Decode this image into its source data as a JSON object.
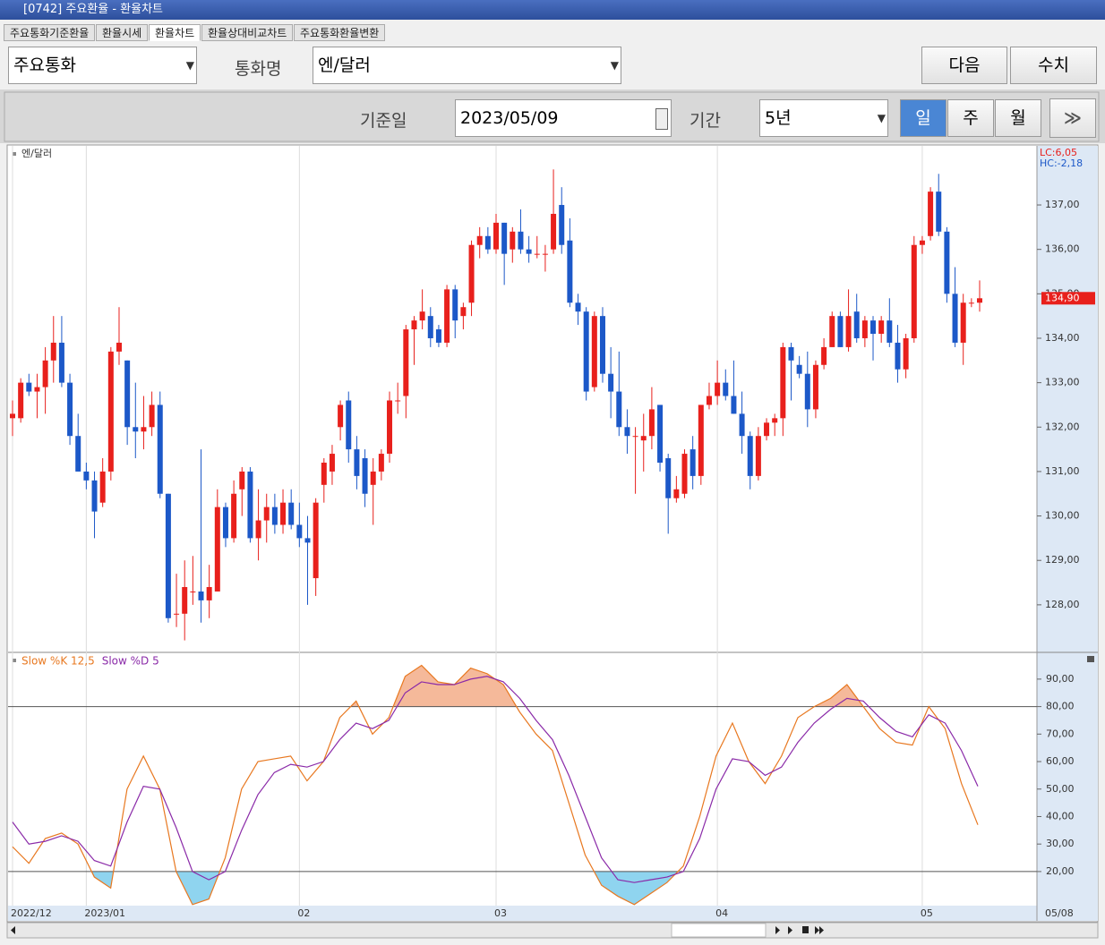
{
  "window": {
    "number": "1",
    "title": "[0742] 주요환율 - 환율차트"
  },
  "tabs": [
    "주요통화기준환율",
    "환율시세",
    "환율차트",
    "환율상대비교차트",
    "주요통화환율변환"
  ],
  "active_tab": 2,
  "controls": {
    "group": "주요통화",
    "currency_label": "통화명",
    "currency": "엔/달러",
    "next": "다음",
    "values": "수치",
    "date_label": "기준일",
    "date": "2023/05/09",
    "period_label": "기간",
    "period": "5년",
    "intervals": [
      "일",
      "주",
      "월"
    ],
    "active_interval": 0
  },
  "chart_data": [
    {
      "type": "candlestick",
      "label": "엔/달러",
      "up_color": "#e8201c",
      "down_color": "#1c58c8",
      "ylim": [
        126.95,
        138.33
      ],
      "yticks": [
        {
          "value": 128,
          "label": "128,00"
        },
        {
          "value": 129,
          "label": "129,00"
        },
        {
          "value": 130,
          "label": "130,00"
        },
        {
          "value": 131,
          "label": "131,00"
        },
        {
          "value": 132,
          "label": "132,00"
        },
        {
          "value": 133,
          "label": "133,00"
        },
        {
          "value": 134,
          "label": "134,00"
        },
        {
          "value": 135,
          "label": "135,00"
        },
        {
          "value": 136,
          "label": "136,00"
        },
        {
          "value": 137,
          "label": "137,00"
        }
      ],
      "info": [
        {
          "text": "LC:6,05",
          "color": "#e8201c"
        },
        {
          "text": "HC:-2,18",
          "color": "#1c58c8"
        }
      ],
      "last_label": "134,90",
      "last_date": "05/08",
      "categories": [
        "2022/12",
        null,
        null,
        null,
        null,
        null,
        null,
        null,
        null,
        "2023/01",
        null,
        null,
        null,
        null,
        null,
        null,
        null,
        null,
        null,
        null,
        null,
        null,
        null,
        null,
        null,
        null,
        null,
        null,
        null,
        null,
        null,
        null,
        null,
        null,
        null,
        "02",
        null,
        null,
        null,
        null,
        null,
        null,
        null,
        null,
        null,
        null,
        null,
        null,
        null,
        null,
        null,
        null,
        null,
        null,
        null,
        null,
        null,
        null,
        null,
        "03",
        null,
        null,
        null,
        null,
        null,
        null,
        null,
        null,
        null,
        null,
        null,
        null,
        null,
        null,
        null,
        null,
        null,
        null,
        null,
        null,
        null,
        null,
        null,
        null,
        null,
        null,
        "04",
        null,
        null,
        null,
        null,
        null,
        null,
        null,
        null,
        null,
        null,
        null,
        null,
        null,
        null,
        null,
        null,
        null,
        null,
        null,
        null,
        null,
        null,
        null,
        null,
        "05",
        null,
        null,
        null,
        null,
        null,
        null,
        null
      ],
      "ohlc": [
        [
          132.2,
          132.6,
          131.8,
          132.3
        ],
        [
          132.2,
          133.1,
          132.1,
          133.0
        ],
        [
          133.0,
          133.2,
          132.7,
          132.8
        ],
        [
          132.8,
          133.2,
          132.2,
          132.9
        ],
        [
          132.9,
          133.8,
          132.3,
          133.5
        ],
        [
          133.5,
          134.5,
          133.0,
          133.9
        ],
        [
          133.9,
          134.5,
          132.9,
          133.0
        ],
        [
          133.0,
          133.2,
          131.6,
          131.8
        ],
        [
          131.8,
          132.3,
          131.0,
          131.0
        ],
        [
          131.0,
          131.2,
          130.6,
          130.8
        ],
        [
          130.8,
          131.0,
          129.5,
          130.1
        ],
        [
          130.3,
          131.3,
          130.2,
          131.0
        ],
        [
          131.0,
          133.8,
          130.8,
          133.7
        ],
        [
          133.7,
          134.7,
          133.4,
          133.9
        ],
        [
          133.5,
          133.5,
          131.6,
          132.0
        ],
        [
          132.0,
          133.0,
          131.3,
          131.9
        ],
        [
          131.9,
          132.7,
          131.5,
          132.0
        ],
        [
          132.0,
          132.8,
          131.8,
          132.5
        ],
        [
          132.5,
          132.8,
          130.4,
          130.5
        ],
        [
          130.5,
          130.5,
          127.6,
          127.7
        ],
        [
          127.8,
          128.7,
          127.5,
          127.8
        ],
        [
          127.8,
          129.0,
          127.2,
          128.4
        ],
        [
          128.3,
          129.1,
          128.0,
          128.3
        ],
        [
          128.3,
          131.5,
          127.6,
          128.1
        ],
        [
          128.1,
          128.9,
          127.7,
          128.4
        ],
        [
          128.3,
          130.6,
          128.3,
          130.2
        ],
        [
          130.2,
          130.3,
          129.3,
          129.5
        ],
        [
          129.5,
          130.8,
          129.4,
          130.5
        ],
        [
          130.6,
          131.1,
          130.0,
          131.0
        ],
        [
          131.0,
          131.1,
          129.4,
          129.5
        ],
        [
          129.5,
          130.6,
          129.0,
          129.9
        ],
        [
          129.9,
          130.5,
          129.4,
          130.2
        ],
        [
          130.2,
          130.5,
          129.6,
          129.8
        ],
        [
          129.8,
          130.6,
          129.6,
          130.3
        ],
        [
          130.3,
          130.6,
          129.7,
          129.8
        ],
        [
          129.8,
          130.3,
          129.3,
          129.5
        ],
        [
          129.5,
          130.0,
          128.0,
          129.4
        ],
        [
          128.6,
          130.4,
          128.2,
          130.3
        ],
        [
          130.7,
          131.3,
          130.3,
          131.2
        ],
        [
          131.0,
          131.6,
          130.7,
          131.4
        ],
        [
          132.0,
          132.6,
          131.7,
          132.5
        ],
        [
          132.6,
          132.8,
          131.2,
          131.5
        ],
        [
          131.5,
          131.8,
          130.6,
          130.9
        ],
        [
          131.3,
          131.5,
          130.2,
          130.5
        ],
        [
          130.7,
          131.3,
          129.8,
          131.0
        ],
        [
          131.0,
          131.5,
          130.8,
          131.4
        ],
        [
          131.4,
          132.8,
          131.2,
          132.6
        ],
        [
          132.6,
          133.0,
          132.3,
          132.6
        ],
        [
          132.7,
          134.3,
          132.2,
          134.2
        ],
        [
          134.2,
          134.5,
          133.4,
          134.4
        ],
        [
          134.4,
          135.1,
          134.2,
          134.6
        ],
        [
          134.5,
          134.7,
          133.8,
          134.0
        ],
        [
          134.2,
          134.3,
          133.8,
          133.9
        ],
        [
          133.9,
          135.2,
          133.8,
          135.1
        ],
        [
          135.1,
          135.2,
          134.0,
          134.4
        ],
        [
          134.5,
          134.8,
          134.2,
          134.7
        ],
        [
          134.8,
          136.2,
          134.5,
          136.1
        ],
        [
          136.1,
          136.5,
          135.8,
          136.3
        ],
        [
          136.3,
          136.5,
          135.9,
          136.0
        ],
        [
          136.0,
          136.8,
          135.9,
          136.6
        ],
        [
          136.6,
          136.6,
          135.2,
          135.9
        ],
        [
          136.0,
          136.5,
          135.7,
          136.4
        ],
        [
          136.4,
          136.9,
          135.9,
          136.0
        ],
        [
          136.0,
          136.3,
          135.7,
          135.9
        ],
        [
          135.9,
          136.3,
          135.8,
          135.9
        ],
        [
          135.9,
          136.1,
          135.5,
          135.9
        ],
        [
          136.0,
          137.8,
          135.9,
          136.8
        ],
        [
          137.0,
          137.4,
          135.9,
          136.1
        ],
        [
          136.2,
          136.7,
          134.7,
          134.8
        ],
        [
          134.8,
          135.0,
          134.3,
          134.6
        ],
        [
          134.6,
          134.7,
          132.6,
          132.8
        ],
        [
          132.9,
          134.6,
          132.8,
          134.5
        ],
        [
          134.5,
          134.7,
          133.0,
          133.2
        ],
        [
          133.2,
          133.8,
          132.2,
          132.8
        ],
        [
          132.8,
          133.7,
          131.8,
          132.0
        ],
        [
          132.0,
          132.4,
          131.4,
          131.8
        ],
        [
          131.8,
          132.0,
          130.5,
          131.8
        ],
        [
          131.7,
          132.3,
          131.0,
          131.8
        ],
        [
          131.8,
          132.9,
          131.5,
          132.4
        ],
        [
          132.5,
          132.5,
          131.0,
          131.2
        ],
        [
          131.3,
          131.4,
          129.6,
          130.4
        ],
        [
          130.4,
          130.9,
          130.3,
          130.6
        ],
        [
          130.5,
          131.5,
          130.4,
          131.4
        ],
        [
          131.5,
          131.8,
          130.6,
          130.9
        ],
        [
          130.9,
          132.5,
          130.7,
          132.5
        ],
        [
          132.5,
          133.0,
          132.4,
          132.7
        ],
        [
          132.7,
          133.5,
          132.5,
          133.0
        ],
        [
          133.0,
          133.3,
          132.6,
          132.7
        ],
        [
          132.7,
          133.5,
          132.3,
          132.3
        ],
        [
          132.3,
          132.8,
          131.4,
          131.8
        ],
        [
          131.8,
          131.9,
          130.6,
          130.9
        ],
        [
          130.9,
          132.0,
          130.8,
          131.8
        ],
        [
          131.8,
          132.2,
          131.7,
          132.1
        ],
        [
          132.1,
          132.3,
          131.8,
          132.2
        ],
        [
          132.2,
          133.9,
          131.8,
          133.8
        ],
        [
          133.8,
          133.9,
          132.6,
          133.5
        ],
        [
          133.4,
          133.6,
          133.1,
          133.2
        ],
        [
          133.2,
          133.7,
          132.0,
          132.4
        ],
        [
          132.4,
          133.5,
          132.2,
          133.4
        ],
        [
          133.4,
          134.0,
          133.3,
          133.8
        ],
        [
          133.8,
          134.6,
          133.8,
          134.5
        ],
        [
          134.5,
          134.6,
          133.8,
          133.8
        ],
        [
          133.8,
          135.1,
          133.7,
          134.5
        ],
        [
          134.6,
          135.0,
          133.9,
          134.0
        ],
        [
          134.0,
          134.5,
          133.8,
          134.4
        ],
        [
          134.4,
          134.5,
          133.5,
          134.1
        ],
        [
          134.1,
          134.5,
          133.9,
          134.4
        ],
        [
          134.4,
          134.9,
          133.8,
          133.9
        ],
        [
          133.9,
          134.3,
          133.0,
          133.3
        ],
        [
          133.3,
          134.1,
          133.1,
          134.0
        ],
        [
          134.0,
          136.3,
          133.9,
          136.1
        ],
        [
          136.1,
          136.3,
          135.9,
          136.2
        ],
        [
          136.3,
          137.4,
          136.2,
          137.3
        ],
        [
          137.3,
          137.7,
          136.3,
          136.4
        ],
        [
          136.4,
          136.5,
          134.8,
          135.0
        ],
        [
          135.0,
          135.6,
          133.8,
          133.9
        ],
        [
          133.9,
          135.0,
          133.4,
          134.8
        ],
        [
          134.8,
          134.9,
          134.7,
          134.8
        ],
        [
          134.8,
          135.3,
          134.6,
          134.9
        ]
      ]
    },
    {
      "type": "line",
      "ylim": [
        7.6,
        99.4
      ],
      "yticks": [
        {
          "value": 20,
          "label": "20,00"
        },
        {
          "value": 30,
          "label": "30,00"
        },
        {
          "value": 40,
          "label": "40,00"
        },
        {
          "value": 50,
          "label": "50,00"
        },
        {
          "value": 60,
          "label": "60,00"
        },
        {
          "value": 70,
          "label": "70,00"
        },
        {
          "value": 80,
          "label": "80,00"
        },
        {
          "value": 90,
          "label": "90,00"
        }
      ],
      "levels": [
        80,
        20
      ],
      "high_fill": "#f5b99a",
      "low_fill": "#8fd4ef",
      "series": [
        {
          "name": "Slow %K 12,5",
          "color": "#e87820",
          "values": [
            29,
            23,
            32,
            34,
            30,
            18,
            14,
            50,
            62,
            50,
            20,
            8,
            10,
            25,
            50,
            60,
            61,
            62,
            53,
            60,
            76,
            82,
            70,
            76,
            91,
            95,
            89,
            88,
            94,
            92,
            88,
            78,
            70,
            64,
            45,
            26,
            15,
            11,
            8,
            12,
            16,
            22,
            40,
            62,
            74,
            60,
            52,
            62,
            76,
            80,
            83,
            88,
            80,
            72,
            67,
            66,
            80,
            72,
            52,
            37
          ]
        },
        {
          "name": "Slow %D 5",
          "color": "#8a2aa8",
          "values": [
            38,
            30,
            31,
            33,
            31,
            24,
            22,
            38,
            51,
            50,
            36,
            20,
            17,
            20,
            35,
            48,
            56,
            59,
            58,
            60,
            68,
            74,
            72,
            75,
            85,
            89,
            88,
            88,
            90,
            91,
            89,
            83,
            75,
            68,
            55,
            40,
            25,
            17,
            16,
            17,
            18,
            20,
            32,
            50,
            61,
            60,
            55,
            58,
            67,
            74,
            79,
            83,
            82,
            76,
            71,
            69,
            77,
            74,
            64,
            51
          ]
        }
      ]
    }
  ]
}
